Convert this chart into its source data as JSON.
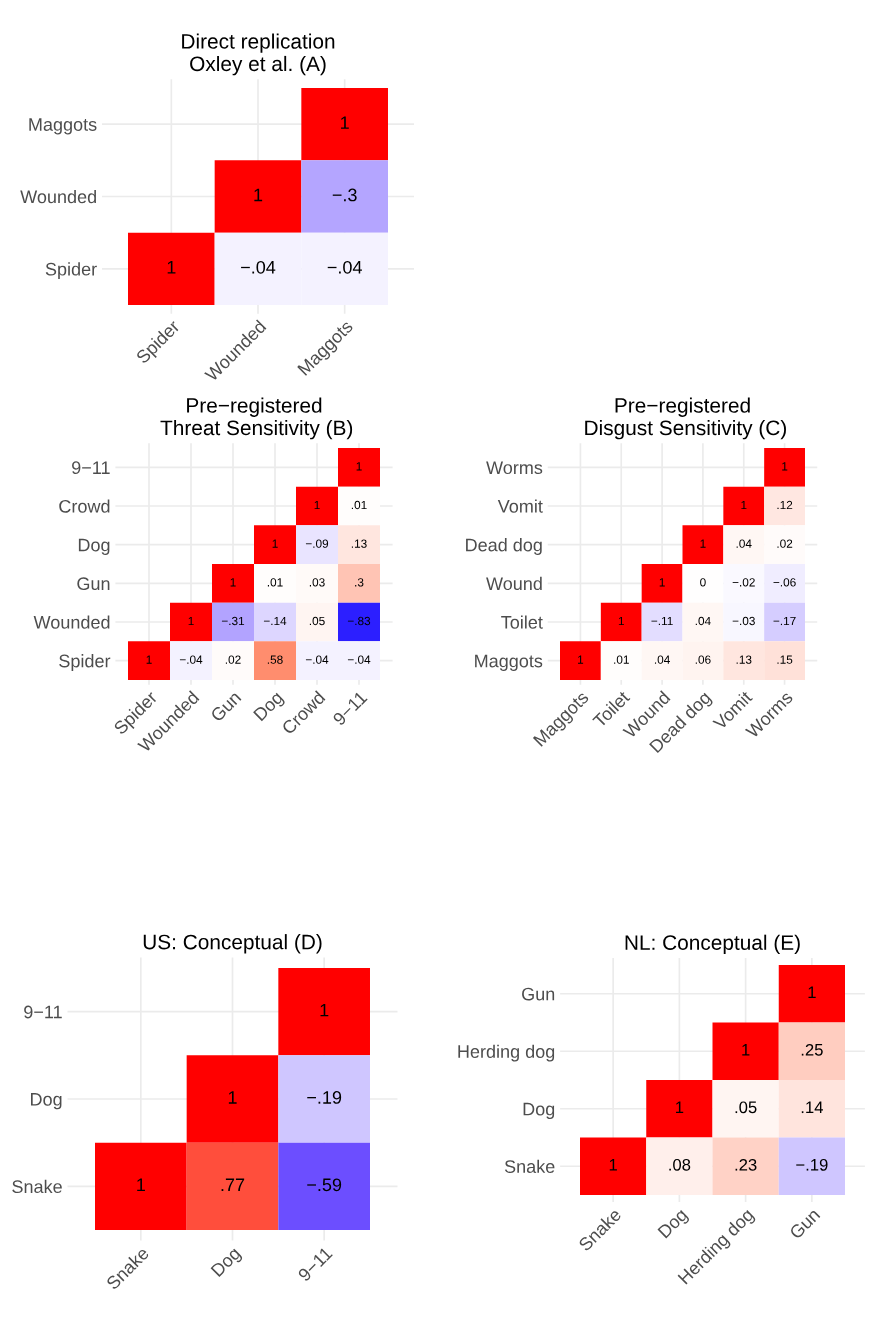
{
  "chart_data": [
    {
      "type": "heatmap",
      "title": "Direct replication\nOxley et al. (A)",
      "categories": [
        "Spider",
        "Wounded",
        "Maggots"
      ],
      "y_categories": [
        "Maggots",
        "Wounded",
        "Spider"
      ],
      "grid": true,
      "cells": [
        [
          null,
          null,
          1
        ],
        [
          null,
          1,
          -0.3
        ],
        [
          1,
          -0.04,
          -0.04
        ]
      ],
      "cell_labels": [
        [
          null,
          null,
          "1"
        ],
        [
          null,
          "1",
          "−.3"
        ],
        [
          "1",
          "−.04",
          "−.04"
        ]
      ]
    },
    {
      "type": "heatmap",
      "title": "Pre−registered\n Threat Sensitivity (B)",
      "categories": [
        "Spider",
        "Wounded",
        "Gun",
        "Dog",
        "Crowd",
        "9−11"
      ],
      "y_categories": [
        "9−11",
        "Crowd",
        "Dog",
        "Gun",
        "Wounded",
        "Spider"
      ],
      "grid": true,
      "cells": [
        [
          null,
          null,
          null,
          null,
          null,
          1
        ],
        [
          null,
          null,
          null,
          null,
          1,
          0.01
        ],
        [
          null,
          null,
          null,
          1,
          -0.09,
          0.13
        ],
        [
          null,
          null,
          1,
          0.01,
          0.03,
          0.3
        ],
        [
          null,
          1,
          -0.31,
          -0.14,
          0.05,
          -0.83
        ],
        [
          1,
          -0.04,
          0.02,
          0.58,
          -0.04,
          -0.04
        ]
      ],
      "cell_labels": [
        [
          null,
          null,
          null,
          null,
          null,
          "1"
        ],
        [
          null,
          null,
          null,
          null,
          "1",
          ".01"
        ],
        [
          null,
          null,
          null,
          "1",
          "−.09",
          ".13"
        ],
        [
          null,
          null,
          "1",
          ".01",
          ".03",
          ".3"
        ],
        [
          null,
          "1",
          "−.31",
          "−.14",
          ".05",
          "−.83"
        ],
        [
          "1",
          "−.04",
          ".02",
          ".58",
          "−.04",
          "−.04"
        ]
      ]
    },
    {
      "type": "heatmap",
      "title": "Pre−registered\n Disgust Sensitivity (C)",
      "categories": [
        "Maggots",
        "Toilet",
        "Wound",
        "Dead dog",
        "Vomit",
        "Worms"
      ],
      "y_categories": [
        "Worms",
        "Vomit",
        "Dead dog",
        "Wound",
        "Toilet",
        "Maggots"
      ],
      "grid": true,
      "cells": [
        [
          null,
          null,
          null,
          null,
          null,
          1
        ],
        [
          null,
          null,
          null,
          null,
          1,
          0.12
        ],
        [
          null,
          null,
          null,
          1,
          0.04,
          0.02
        ],
        [
          null,
          null,
          1,
          0,
          -0.02,
          -0.06
        ],
        [
          null,
          1,
          -0.11,
          0.04,
          -0.03,
          -0.17
        ],
        [
          1,
          0.01,
          0.04,
          0.06,
          0.13,
          0.15
        ]
      ],
      "cell_labels": [
        [
          null,
          null,
          null,
          null,
          null,
          "1"
        ],
        [
          null,
          null,
          null,
          null,
          "1",
          ".12"
        ],
        [
          null,
          null,
          null,
          "1",
          ".04",
          ".02"
        ],
        [
          null,
          null,
          "1",
          "0",
          "−.02",
          "−.06"
        ],
        [
          null,
          "1",
          "−.11",
          ".04",
          "−.03",
          "−.17"
        ],
        [
          "1",
          ".01",
          ".04",
          ".06",
          ".13",
          ".15"
        ]
      ]
    },
    {
      "type": "heatmap",
      "title": "US: Conceptual (D)",
      "categories": [
        "Snake",
        "Dog",
        "9−11"
      ],
      "y_categories": [
        "9−11",
        "Dog",
        "Snake"
      ],
      "grid": true,
      "cells": [
        [
          null,
          null,
          1
        ],
        [
          null,
          1,
          -0.19
        ],
        [
          1,
          0.77,
          -0.59
        ]
      ],
      "cell_labels": [
        [
          null,
          null,
          "1"
        ],
        [
          null,
          "1",
          "−.19"
        ],
        [
          "1",
          ".77",
          "−.59"
        ]
      ]
    },
    {
      "type": "heatmap",
      "title": "NL: Conceptual (E)",
      "categories": [
        "Snake",
        "Dog",
        "Herding dog",
        "Gun"
      ],
      "y_categories": [
        "Gun",
        "Herding dog",
        "Dog",
        "Snake"
      ],
      "grid": true,
      "cells": [
        [
          null,
          null,
          null,
          1
        ],
        [
          null,
          null,
          1,
          0.25
        ],
        [
          null,
          1,
          0.05,
          0.14
        ],
        [
          1,
          0.08,
          0.23,
          -0.19
        ]
      ],
      "cell_labels": [
        [
          null,
          null,
          null,
          "1"
        ],
        [
          null,
          null,
          "1",
          ".25"
        ],
        [
          null,
          "1",
          ".05",
          ".14"
        ],
        [
          "1",
          ".08",
          ".23",
          "−.19"
        ]
      ]
    }
  ]
}
